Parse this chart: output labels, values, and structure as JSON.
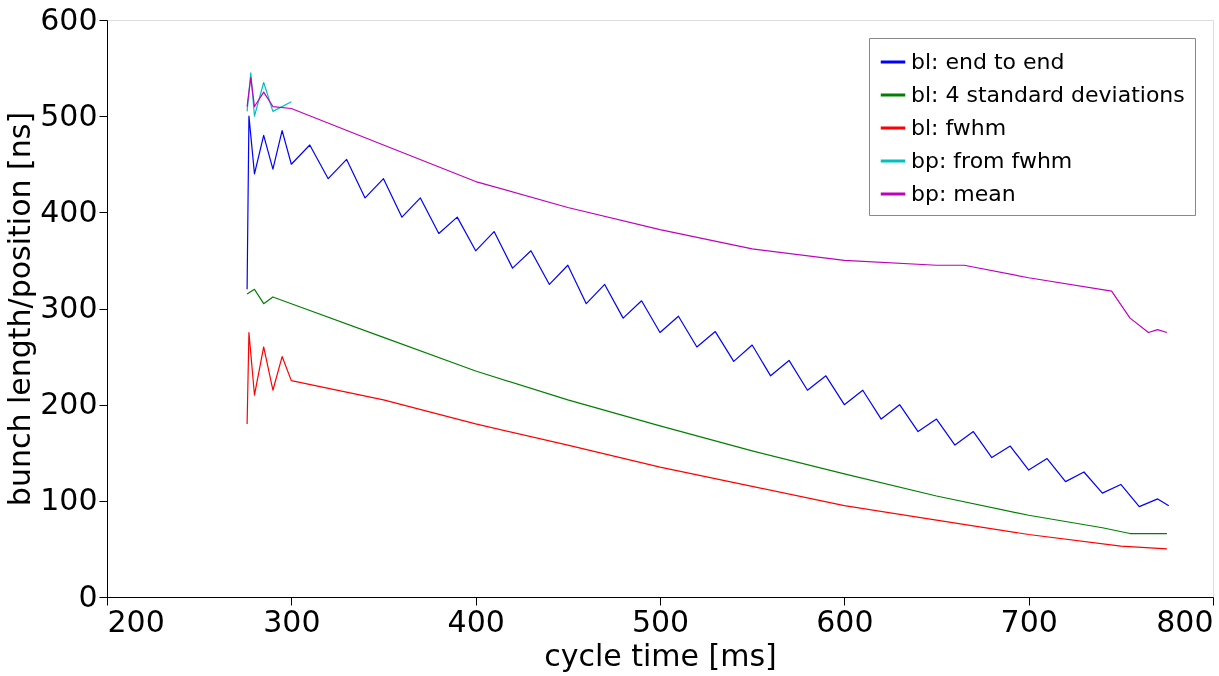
{
  "chart_data": {
    "type": "line",
    "xlabel": "cycle time [ms]",
    "ylabel": "bunch length/position [ns]",
    "xlim": [
      200,
      800
    ],
    "xticks": [
      200,
      300,
      400,
      500,
      600,
      700,
      800
    ],
    "ylim": [
      0,
      600
    ],
    "yticks": [
      0,
      100,
      200,
      300,
      400,
      500,
      600
    ],
    "grid": false,
    "legend": "top right",
    "marker": "none",
    "line_style": "solid",
    "series": [
      {
        "name": "bl: end to end",
        "color": "#0000ff",
        "x": [
          276,
          277,
          280,
          285,
          290,
          295,
          300,
          310,
          320,
          330,
          340,
          350,
          360,
          370,
          380,
          390,
          400,
          410,
          420,
          430,
          440,
          450,
          460,
          470,
          480,
          490,
          500,
          510,
          520,
          530,
          540,
          550,
          560,
          570,
          580,
          590,
          600,
          610,
          620,
          630,
          640,
          650,
          660,
          670,
          680,
          690,
          700,
          710,
          720,
          730,
          740,
          750,
          760,
          770,
          776
        ],
        "values": [
          320,
          500,
          440,
          480,
          445,
          485,
          450,
          470,
          435,
          455,
          415,
          435,
          395,
          415,
          378,
          395,
          360,
          380,
          342,
          360,
          325,
          345,
          305,
          325,
          290,
          308,
          275,
          292,
          260,
          276,
          245,
          262,
          230,
          246,
          215,
          230,
          200,
          215,
          185,
          200,
          172,
          185,
          158,
          172,
          145,
          157,
          132,
          144,
          120,
          130,
          108,
          117,
          94,
          102,
          95
        ]
      },
      {
        "name": "bl: 4 standard deviations",
        "color": "#008000",
        "x": [
          276,
          280,
          285,
          290,
          300,
          350,
          400,
          450,
          500,
          550,
          600,
          650,
          700,
          740,
          755,
          775
        ],
        "values": [
          315,
          320,
          305,
          312,
          305,
          270,
          235,
          205,
          178,
          152,
          128,
          105,
          85,
          72,
          66,
          66
        ]
      },
      {
        "name": "bl: fwhm",
        "color": "#ff0000",
        "x": [
          276,
          277,
          280,
          285,
          290,
          295,
          300,
          350,
          400,
          450,
          500,
          550,
          600,
          650,
          700,
          750,
          775
        ],
        "values": [
          180,
          275,
          210,
          260,
          215,
          250,
          225,
          205,
          180,
          158,
          135,
          115,
          95,
          80,
          65,
          53,
          50
        ]
      },
      {
        "name": "bp: from fwhm",
        "color": "#00bfbf",
        "x": [
          276,
          278,
          280,
          285,
          290,
          300
        ],
        "values": [
          505,
          545,
          500,
          535,
          505,
          515
        ]
      },
      {
        "name": "bp: mean",
        "color": "#bf00bf",
        "x": [
          276,
          278,
          280,
          285,
          290,
          300,
          350,
          400,
          450,
          500,
          550,
          600,
          650,
          665,
          700,
          745,
          755,
          765,
          770,
          775
        ],
        "values": [
          510,
          540,
          510,
          525,
          510,
          508,
          470,
          432,
          405,
          382,
          362,
          350,
          345,
          345,
          332,
          318,
          290,
          275,
          278,
          275
        ]
      }
    ]
  }
}
